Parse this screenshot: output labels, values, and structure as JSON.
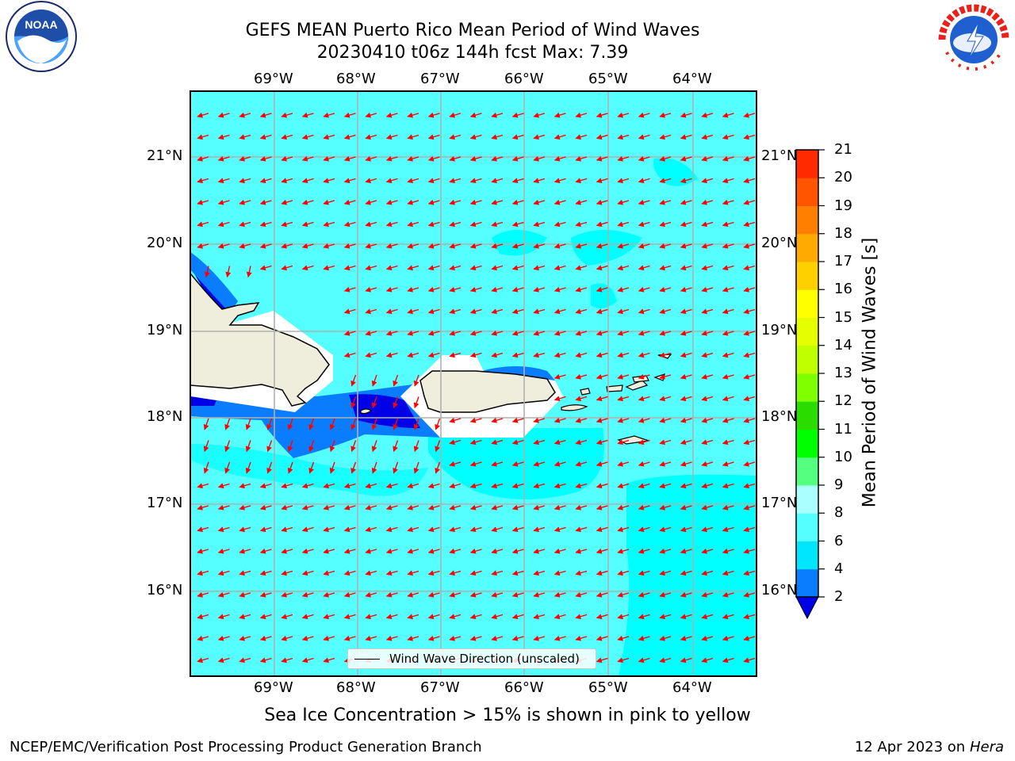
{
  "header": {
    "title_line1": "GEFS MEAN Puerto Rico Mean Period of Wind Waves",
    "title_line2": "20230410 t06z 144h fcst   Max: 7.39"
  },
  "logos": {
    "left": "noaa-logo",
    "right": "nws-logo"
  },
  "map": {
    "lon_labels": [
      "69°W",
      "68°W",
      "67°W",
      "66°W",
      "65°W",
      "64°W"
    ],
    "lat_labels": [
      "21°N",
      "20°N",
      "19°N",
      "18°N",
      "17°N",
      "16°N"
    ],
    "colors": {
      "water_low": "#00ffff",
      "water_mid": "#55ffff",
      "water_band": "#0a7dff",
      "water_deep": "#0000e6",
      "land": "#efeedd",
      "arrow": "#ff0000"
    }
  },
  "colorbar": {
    "label": "Mean Period of Wind Waves [s]",
    "ticks": [
      "2",
      "4",
      "6",
      "8",
      "9",
      "10",
      "11",
      "12",
      "13",
      "14",
      "15",
      "16",
      "17",
      "18",
      "19",
      "20",
      "21"
    ],
    "colors": [
      "#0a7dff",
      "#00e6ff",
      "#55ffff",
      "#aaffff",
      "#55ff80",
      "#00ff00",
      "#2bdc00",
      "#80ff00",
      "#bfff00",
      "#e6ff00",
      "#ffff00",
      "#ffd000",
      "#ffaa00",
      "#ff8000",
      "#ff5500",
      "#ff2a00",
      "#ff0000"
    ]
  },
  "legend": {
    "text": "Wind Wave Direction (unscaled)"
  },
  "caption": "Sea Ice Concentration > 15% is shown in pink to yellow",
  "footer": {
    "left": "NCEP/EMC/Verification Post Processing Product Generation Branch",
    "date": "12 Apr 2023 on",
    "machine": "Hera"
  }
}
